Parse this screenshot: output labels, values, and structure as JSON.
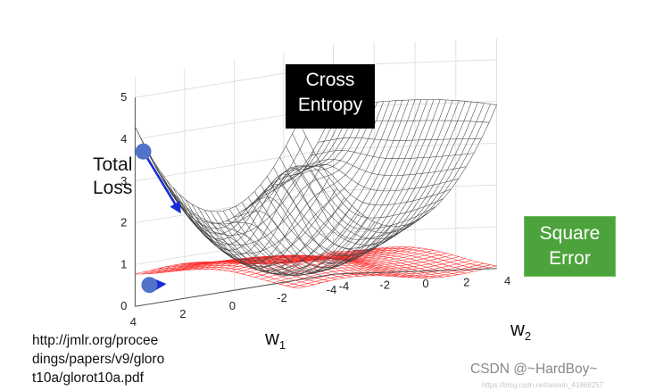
{
  "chart_data": {
    "type": "surface3d",
    "title": "",
    "zlabel_lines": [
      "Total",
      "Loss"
    ],
    "xlabel": "w",
    "xlabel_sub": "1",
    "ylabel": "w",
    "ylabel_sub": "2",
    "z_ticks": [
      0,
      1,
      2,
      3,
      4,
      5
    ],
    "x_ticks": [
      4,
      2,
      0,
      -2,
      -4
    ],
    "y_ticks": [
      -4,
      -2,
      0,
      2,
      4
    ],
    "xlim": [
      4,
      -4
    ],
    "ylim": [
      -4,
      4
    ],
    "zlim": [
      0,
      5
    ],
    "series": [
      {
        "name": "Cross Entropy",
        "label_lines": [
          "Cross",
          "Entropy"
        ],
        "color": "#444444",
        "label_bg": "#000000",
        "start_loss": 3.7,
        "arrow": "steep"
      },
      {
        "name": "Square Error",
        "label_lines": [
          "Square",
          "Error"
        ],
        "color": "#ff2a2a",
        "label_bg": "#4da33b",
        "start_loss": 0.5,
        "arrow": "short"
      }
    ],
    "reference_lines": [
      "http://jmlr.org/procee",
      "dings/papers/v9/gloro",
      "t10a/glorot10a.pdf"
    ],
    "watermark": "CSDN @~HardBoy~"
  }
}
